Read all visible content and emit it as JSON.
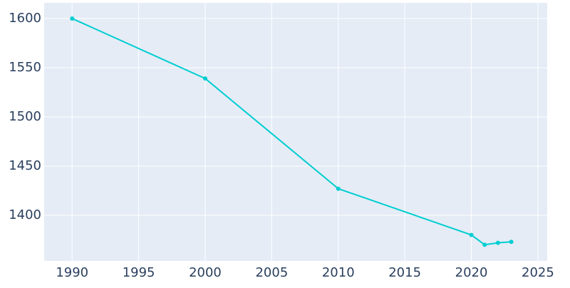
{
  "chart_data": {
    "type": "line",
    "x": [
      1990,
      2000,
      2010,
      2020,
      2021,
      2022,
      2023
    ],
    "series": [
      {
        "color": "#00ced1",
        "values": [
          1600,
          1539,
          1427,
          1380,
          1370,
          1372,
          1373
        ]
      }
    ],
    "xlim": [
      1987.9,
      2025.7
    ],
    "xticks": [
      1990,
      1995,
      2000,
      2005,
      2010,
      2015,
      2020,
      2025
    ],
    "ylim": [
      1353.6,
      1615.9
    ],
    "yticks": [
      1400,
      1450,
      1500,
      1550,
      1600
    ],
    "grid": true
  }
}
